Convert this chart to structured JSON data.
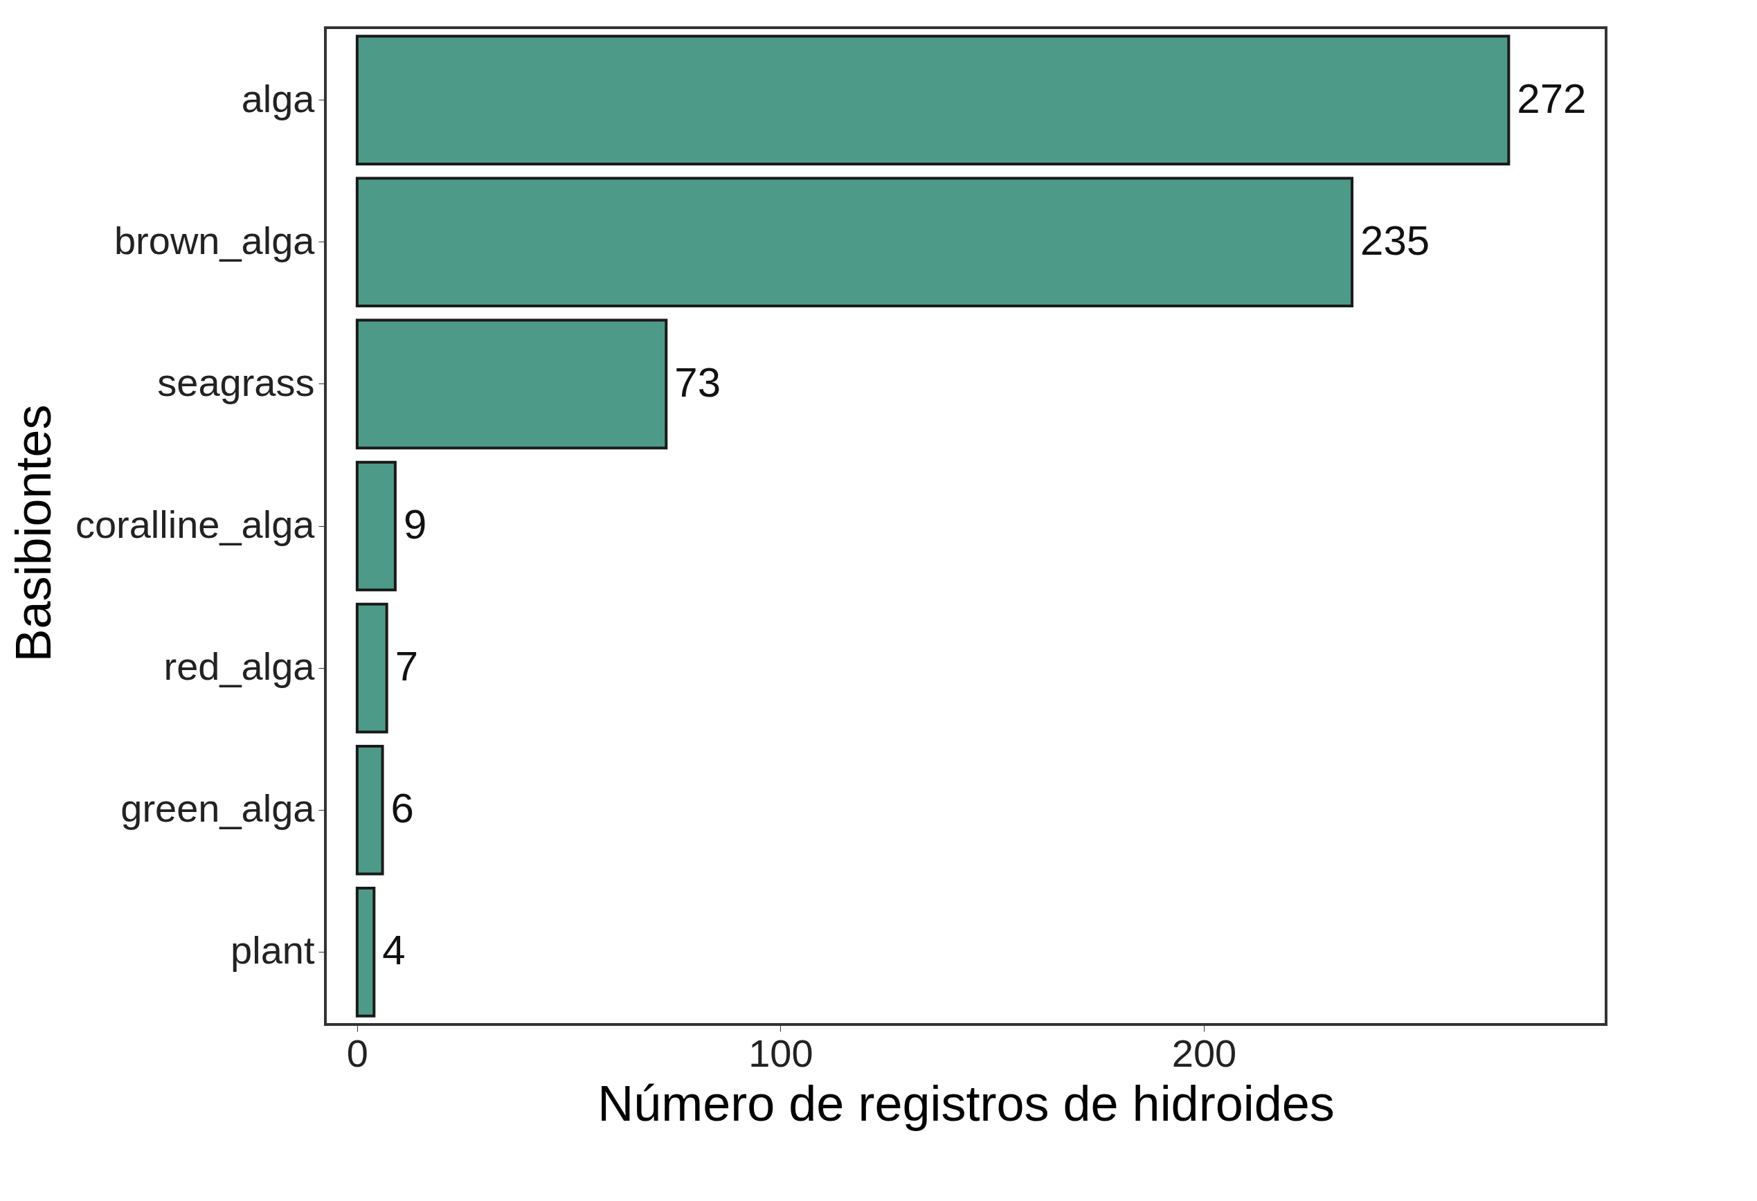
{
  "chart_data": {
    "type": "bar",
    "orientation": "horizontal",
    "xlabel": "Número de registros de hidroides",
    "ylabel": "Basibiontes",
    "categories": [
      "alga",
      "brown_alga",
      "seagrass",
      "coralline_alga",
      "red_alga",
      "green_alga",
      "plant"
    ],
    "values": [
      272,
      235,
      73,
      9,
      7,
      6,
      4
    ],
    "color": "#4e9a88",
    "xlim": [
      -7.5,
      295
    ],
    "xticks": [
      0,
      100,
      200
    ],
    "grid": false,
    "data_labels": true
  }
}
